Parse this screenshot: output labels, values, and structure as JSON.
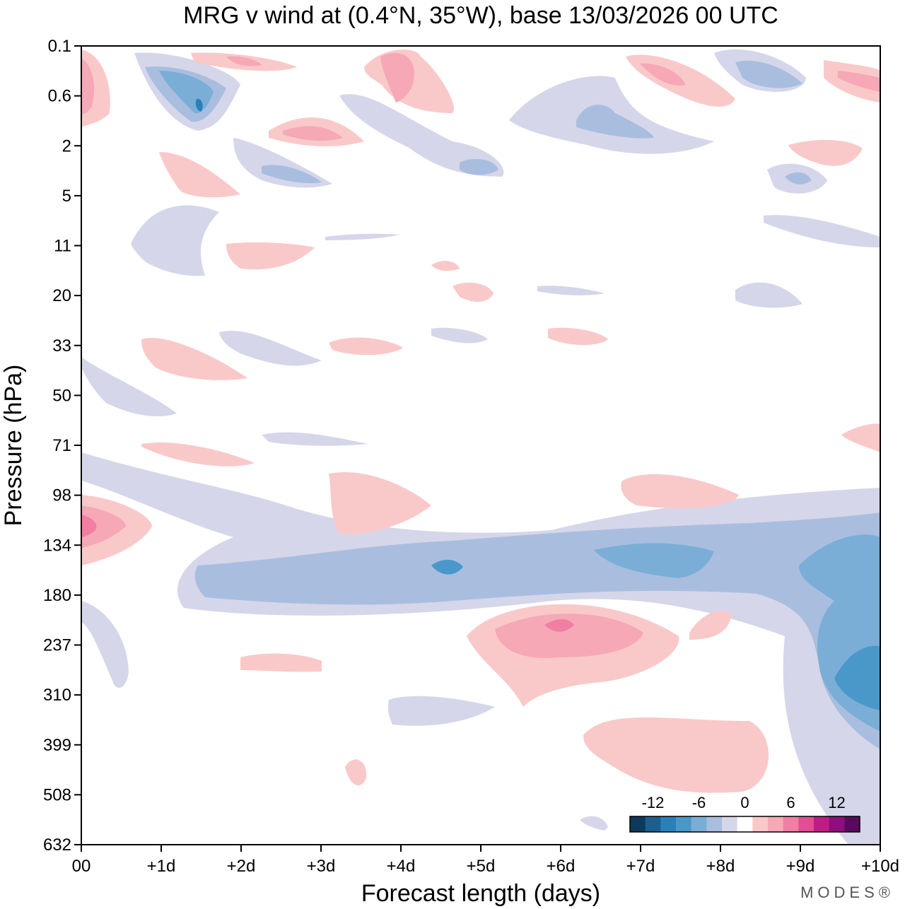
{
  "chart_data": {
    "type": "heatmap",
    "title": "MRG v wind at (0.4°N, 35°W),  base 13/03/2026  00 UTC",
    "xlabel": "Forecast length (days)",
    "ylabel": "Pressure (hPa)",
    "xlim": [
      0,
      10
    ],
    "x_tick_labels": [
      "00",
      "+1d",
      "+2d",
      "+3d",
      "+4d",
      "+5d",
      "+6d",
      "+7d",
      "+8d",
      "+9d",
      "+10d"
    ],
    "y_tick_labels": [
      "0.1",
      "0.6",
      "2",
      "5",
      "11",
      "20",
      "33",
      "50",
      "71",
      "98",
      "134",
      "180",
      "237",
      "310",
      "399",
      "508",
      "632"
    ],
    "colorbar": {
      "tick_labels": [
        "-12",
        "-6",
        "0",
        "6",
        "12"
      ],
      "levels": [
        -14,
        -12,
        -10,
        -8,
        -6,
        -4,
        -2,
        0,
        2,
        4,
        6,
        8,
        10,
        12,
        14
      ],
      "colors": [
        "#0d3a5c",
        "#1b5f8f",
        "#2980b9",
        "#4a97c9",
        "#7aaed6",
        "#a9bedf",
        "#d6d6ea",
        "#ffffff",
        "#f9c9c9",
        "#f6a8b6",
        "#f07fa3",
        "#e24d93",
        "#bf1d86",
        "#8e0f7c",
        "#5a0a5e"
      ]
    },
    "blobs": [
      {
        "sign": "neg",
        "value": -8,
        "x": 1.5,
        "p": "0.6",
        "dx": 0.6,
        "dp": 1.0
      },
      {
        "sign": "neg",
        "value": -6,
        "x": 3.3,
        "p": "5",
        "dx": 0.6,
        "dp": 0.5
      },
      {
        "sign": "neg",
        "value": -6,
        "x": 6.6,
        "p": "2",
        "dx": 0.6,
        "dp": 0.7
      },
      {
        "sign": "neg",
        "value": -6,
        "x": 9.4,
        "p": "0.6",
        "dx": 0.6,
        "dp": 0.6
      },
      {
        "sign": "pos",
        "value": 8,
        "x": 2.0,
        "p": "0.1",
        "dx": 0.5,
        "dp": 0.3
      },
      {
        "sign": "pos",
        "value": 8,
        "x": 3.0,
        "p": "2",
        "dx": 0.6,
        "dp": 0.5
      },
      {
        "sign": "pos",
        "value": 8,
        "x": 4.0,
        "p": "0.1",
        "dx": 0.4,
        "dp": 1.2
      },
      {
        "sign": "pos",
        "value": 6,
        "x": 8.7,
        "p": "0.6",
        "dx": 0.7,
        "dp": 0.5
      },
      {
        "sign": "pos",
        "value": 10,
        "x": 0.1,
        "p": "134",
        "dx": 0.8,
        "dp": 1.1
      },
      {
        "sign": "pos",
        "value": 10,
        "x": 6.0,
        "p": "237",
        "dx": 1.5,
        "dp": 1.3
      },
      {
        "sign": "pos",
        "value": 4,
        "x": 8.5,
        "p": "508",
        "dx": 1.6,
        "dp": 1.0
      },
      {
        "sign": "neg",
        "value": -10,
        "x": 9.8,
        "p": "310",
        "dx": 0.8,
        "dp": 2.5
      },
      {
        "sign": "neg",
        "value": -8,
        "x": 8.3,
        "p": "134",
        "dx": 2.0,
        "dp": 0.7
      }
    ]
  },
  "logo": {
    "text": "MODES®"
  }
}
